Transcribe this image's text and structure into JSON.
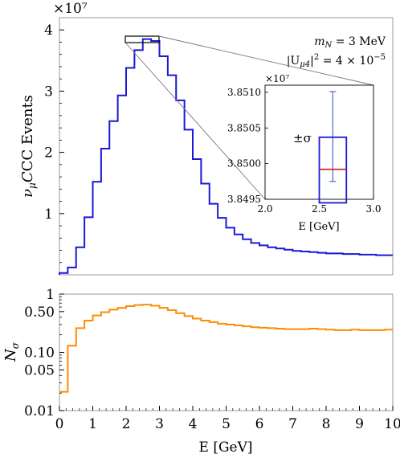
{
  "chart_data": [
    {
      "type": "line",
      "step": true,
      "exponent_label": "×10⁷",
      "ylabel": "ν_μCC Events",
      "ylabel_main": "CC Events",
      "xlim": [
        0,
        10
      ],
      "ylim": [
        0,
        4.2
      ],
      "yticks": [
        {
          "v": 1,
          "label": "1"
        },
        {
          "v": 2,
          "label": "2"
        },
        {
          "v": 3,
          "label": "3"
        },
        {
          "v": 4,
          "label": "4"
        }
      ],
      "annotations": [
        "m_N = 3 MeV",
        "|U_μ4|² = 4 × 10⁻⁵"
      ],
      "annotation_lines": [
        {
          "main": "m",
          "sub": "N",
          "rest": " = 3 MeV"
        },
        {
          "pre": "|U",
          "sub": "μ4",
          "post": "|",
          "sup": "2",
          "rest": " = 4 × 10",
          "sup2": "−5"
        }
      ],
      "color": "#1919d6",
      "series": [
        {
          "edges": [
            0,
            0.25,
            0.5,
            0.75,
            1,
            1.25,
            1.5,
            1.75,
            2,
            2.25,
            2.5,
            2.75,
            3,
            3.25,
            3.5,
            3.75,
            4,
            4.25,
            4.5,
            4.75,
            5,
            5.25,
            5.5,
            5.75,
            6,
            6.25,
            6.5,
            6.75,
            7,
            7.25,
            7.5,
            7.75,
            8,
            8.25,
            8.5,
            8.75,
            9,
            9.25,
            9.5,
            9.75,
            10
          ],
          "values": [
            0.03,
            0.12,
            0.45,
            0.94,
            1.52,
            2.06,
            2.51,
            2.93,
            3.38,
            3.67,
            3.85,
            3.82,
            3.57,
            3.26,
            2.85,
            2.37,
            1.89,
            1.49,
            1.16,
            0.93,
            0.77,
            0.66,
            0.58,
            0.52,
            0.48,
            0.45,
            0.43,
            0.41,
            0.39,
            0.38,
            0.37,
            0.36,
            0.35,
            0.35,
            0.34,
            0.34,
            0.33,
            0.33,
            0.32,
            0.32
          ]
        }
      ]
    },
    {
      "type": "line",
      "step": true,
      "role": "inset",
      "exponent_label": "×10⁷",
      "xlabel": "E [GeV]",
      "xlim": [
        2.0,
        3.0
      ],
      "ylim": [
        3.8495,
        3.8511
      ],
      "xticks": [
        {
          "v": 2.0,
          "label": "2.0"
        },
        {
          "v": 2.5,
          "label": "2.5"
        },
        {
          "v": 3.0,
          "label": "3.0"
        }
      ],
      "yticks": [
        {
          "v": 3.8495,
          "label": "3.8495"
        },
        {
          "v": 3.85,
          "label": "3.8500"
        },
        {
          "v": 3.8505,
          "label": "3.8505"
        },
        {
          "v": 3.851,
          "label": "3.8510"
        }
      ],
      "annotations": [
        "±σ"
      ],
      "bin": [
        2.5,
        2.75
      ],
      "mean": 3.84992,
      "sigma_box": [
        3.84945,
        3.85037
      ],
      "errorbar": [
        3.84975,
        3.85101
      ],
      "colors": {
        "box": "#1919d6",
        "mean": "#d62728",
        "errorbar": "#5a6fe0"
      }
    },
    {
      "type": "line",
      "step": true,
      "xlabel": "E [GeV]",
      "ylabel": "N_σ",
      "ylabel_main": "N",
      "ylabel_sub": "σ",
      "log_y": true,
      "xlim": [
        0,
        10
      ],
      "ylim": [
        0.01,
        1
      ],
      "xticks": [
        {
          "v": 0,
          "label": "0"
        },
        {
          "v": 1,
          "label": "1"
        },
        {
          "v": 2,
          "label": "2"
        },
        {
          "v": 3,
          "label": "3"
        },
        {
          "v": 4,
          "label": "4"
        },
        {
          "v": 5,
          "label": "5"
        },
        {
          "v": 6,
          "label": "6"
        },
        {
          "v": 7,
          "label": "7"
        },
        {
          "v": 8,
          "label": "8"
        },
        {
          "v": 9,
          "label": "9"
        },
        {
          "v": 10,
          "label": "10"
        }
      ],
      "yticks": [
        {
          "v": 0.01,
          "label": "0.01"
        },
        {
          "v": 0.05,
          "label": "0.05"
        },
        {
          "v": 0.1,
          "label": "0.10"
        },
        {
          "v": 0.5,
          "label": "0.50"
        },
        {
          "v": 1,
          "label": "1"
        }
      ],
      "color": "#ff8c00",
      "series": [
        {
          "edges": [
            0,
            0.25,
            0.5,
            0.75,
            1,
            1.25,
            1.5,
            1.75,
            2,
            2.25,
            2.5,
            2.75,
            3,
            3.25,
            3.5,
            3.75,
            4,
            4.25,
            4.5,
            4.75,
            5,
            5.25,
            5.5,
            5.75,
            6,
            6.25,
            6.5,
            6.75,
            7,
            7.25,
            7.5,
            7.75,
            8,
            8.25,
            8.5,
            8.75,
            9,
            9.25,
            9.5,
            9.75,
            10
          ],
          "values": [
            0.021,
            0.13,
            0.26,
            0.35,
            0.43,
            0.49,
            0.54,
            0.58,
            0.62,
            0.65,
            0.66,
            0.63,
            0.58,
            0.53,
            0.47,
            0.42,
            0.38,
            0.35,
            0.33,
            0.31,
            0.3,
            0.29,
            0.28,
            0.27,
            0.265,
            0.26,
            0.255,
            0.25,
            0.25,
            0.25,
            0.255,
            0.25,
            0.245,
            0.24,
            0.24,
            0.245,
            0.24,
            0.24,
            0.24,
            0.245
          ]
        }
      ]
    }
  ]
}
